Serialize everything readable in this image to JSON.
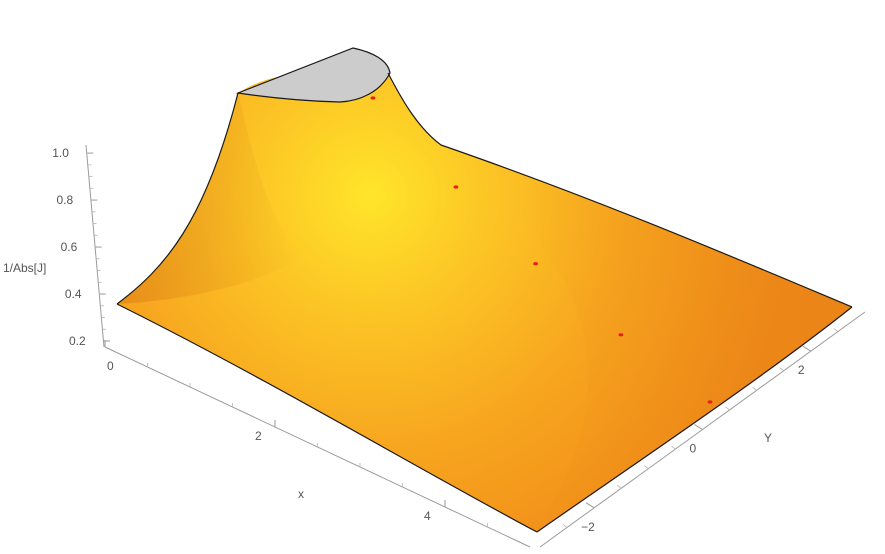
{
  "chart_data": {
    "type": "surface3d",
    "title": "",
    "xlabel": "x",
    "ylabel": "Y",
    "zlabel": "1/Abs[J]",
    "xlim": [
      0,
      5
    ],
    "ylim": [
      -3,
      3
    ],
    "zlim": [
      0.2,
      1.0
    ],
    "x_ticks": [
      "0",
      "2",
      "4"
    ],
    "y_ticks": [
      "−2",
      "0",
      "2"
    ],
    "z_ticks": [
      "0.2",
      "0.4",
      "0.6",
      "0.8",
      "1.0"
    ],
    "surface_color": "#f39a1c",
    "highlight_color": "#ffe52a",
    "clip_cap_color": "#cccccc",
    "marker_color": "#e81e1e",
    "markers": [
      {
        "x": 0.4,
        "y": 0.0
      },
      {
        "x": 1.5,
        "y": 0.0
      },
      {
        "x": 2.5,
        "y": 0.0
      },
      {
        "x": 3.5,
        "y": 0.0
      },
      {
        "x": 4.5,
        "y": 0.0
      }
    ]
  }
}
